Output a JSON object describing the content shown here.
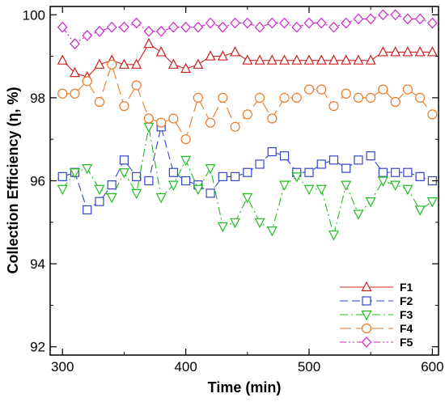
{
  "chart_data": {
    "type": "line",
    "title": "",
    "xlabel": "Time (min)",
    "ylabel": "Collection Efficiency (η, %)",
    "xlim": [
      290,
      605
    ],
    "ylim": [
      91.8,
      100.2
    ],
    "xticks": [
      300,
      400,
      500,
      600
    ],
    "yticks": [
      92,
      94,
      96,
      98,
      100
    ],
    "grid": false,
    "legend_position": "bottom-right",
    "x": [
      300,
      310,
      320,
      330,
      340,
      350,
      360,
      370,
      380,
      390,
      400,
      410,
      420,
      430,
      440,
      450,
      460,
      470,
      480,
      490,
      500,
      510,
      520,
      530,
      540,
      550,
      560,
      570,
      580,
      590,
      600
    ],
    "series": [
      {
        "name": "F1",
        "color": "#cc2222",
        "dash": "",
        "marker": "triangle-up",
        "values": [
          98.9,
          98.6,
          98.5,
          98.8,
          98.9,
          98.8,
          98.8,
          99.3,
          99.1,
          98.8,
          98.7,
          98.8,
          99.0,
          99.0,
          99.1,
          98.9,
          98.9,
          98.9,
          98.9,
          98.9,
          98.9,
          98.9,
          98.9,
          98.9,
          98.9,
          98.9,
          99.1,
          99.1,
          99.1,
          99.1,
          99.1
        ]
      },
      {
        "name": "F2",
        "color": "#3344cc",
        "dash": "10,5",
        "marker": "square",
        "values": [
          96.1,
          96.2,
          95.3,
          95.5,
          95.9,
          96.5,
          96.1,
          96.0,
          97.3,
          96.2,
          96.0,
          95.9,
          95.7,
          96.1,
          96.1,
          96.2,
          96.4,
          96.7,
          96.6,
          96.2,
          96.2,
          96.4,
          96.5,
          96.3,
          96.5,
          96.6,
          96.2,
          96.2,
          96.2,
          96.1,
          96.0
        ]
      },
      {
        "name": "F3",
        "color": "#22bb22",
        "dash": "10,4,2,4",
        "marker": "triangle-down",
        "values": [
          95.8,
          96.2,
          96.3,
          95.8,
          95.6,
          96.2,
          95.7,
          97.3,
          95.6,
          95.9,
          96.5,
          95.8,
          96.3,
          94.9,
          95.0,
          95.6,
          95.0,
          94.8,
          95.9,
          96.1,
          95.8,
          95.8,
          94.7,
          95.9,
          95.2,
          95.5,
          96.0,
          95.9,
          95.8,
          95.3,
          95.5
        ]
      },
      {
        "name": "F4",
        "color": "#ee7722",
        "dash": "14,6",
        "marker": "circle",
        "values": [
          98.1,
          98.1,
          98.4,
          97.9,
          98.8,
          97.8,
          98.3,
          97.5,
          97.4,
          97.5,
          97.0,
          98.0,
          97.4,
          98.0,
          97.3,
          97.6,
          98.0,
          97.5,
          98.0,
          98.0,
          98.2,
          98.2,
          97.8,
          98.1,
          98.0,
          98.0,
          98.2,
          97.9,
          98.2,
          98.0,
          97.6
        ]
      },
      {
        "name": "F5",
        "color": "#cc22cc",
        "dash": "8,3,2,3,2,3",
        "marker": "diamond",
        "values": [
          99.7,
          99.3,
          99.5,
          99.6,
          99.7,
          99.7,
          99.8,
          99.6,
          99.6,
          99.7,
          99.7,
          99.7,
          99.8,
          99.7,
          99.8,
          99.8,
          99.7,
          99.8,
          99.8,
          99.7,
          99.8,
          99.8,
          99.7,
          99.8,
          99.9,
          99.9,
          100.0,
          100.0,
          99.9,
          99.9,
          99.8
        ]
      }
    ]
  }
}
